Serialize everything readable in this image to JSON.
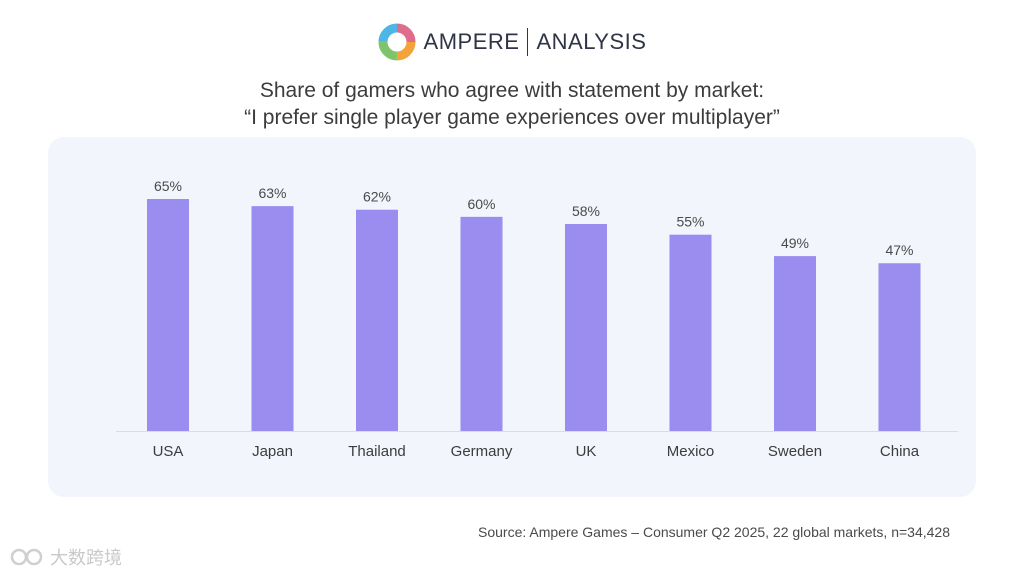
{
  "logo": {
    "brand": "AMPERE",
    "sub": "ANALYSIS"
  },
  "title_line1": "Share of gamers who agree with statement by market:",
  "title_line2": "“I prefer single player game experiences over multiplayer”",
  "chart_data": {
    "type": "bar",
    "title": "Share of gamers who agree with statement by market: “I prefer single player game experiences over multiplayer”",
    "categories": [
      "USA",
      "Japan",
      "Thailand",
      "Germany",
      "UK",
      "Mexico",
      "Sweden",
      "China"
    ],
    "values": [
      65,
      63,
      62,
      60,
      58,
      55,
      49,
      47
    ],
    "value_labels": [
      "65%",
      "63%",
      "62%",
      "60%",
      "58%",
      "55%",
      "49%",
      "47%"
    ],
    "unit": "%",
    "xlabel": "",
    "ylabel": "",
    "ylim": [
      0,
      65
    ],
    "grid": false,
    "bar_color": "#9b8cf0"
  },
  "source": "Source: Ampere Games – Consumer Q2 2025, 22 global markets, n=34,428",
  "watermark": "大数跨境"
}
